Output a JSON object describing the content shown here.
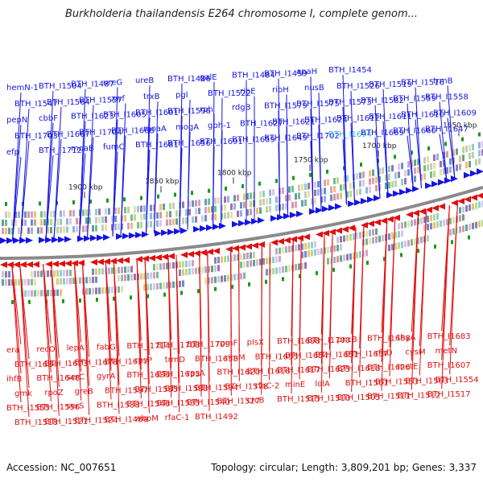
{
  "title": "Burkholderia thailandensis E264 chromosome I, complete genom...",
  "footer": {
    "accession_label": "Accession:",
    "accession": "NC_007651",
    "topology_label": "Topology:",
    "topology": "circular",
    "length_label": "Length:",
    "length": "3,809,201 bp",
    "genes_label": "Genes:",
    "genes": "3,337"
  },
  "colors": {
    "forward_strand": "#1414e6",
    "reverse_strand": "#e01010",
    "highlight_label": "#3cb4dc",
    "backbone": "#8a8a8a",
    "tick_marks": "#1a9a1a"
  },
  "scale": {
    "ticks": [
      "1650 kbp",
      "1700 kbp",
      "1750 kbp",
      "1800 kbp",
      "1850 kbp",
      "1900 kbp"
    ]
  },
  "genes_forward": [
    {
      "label": "efp"
    },
    {
      "label": "BTH_I1712"
    },
    {
      "label": "moaB"
    },
    {
      "label": "fumC"
    },
    {
      "label": "BTH_I1681"
    },
    {
      "label": "BTH_I1656"
    },
    {
      "label": "BTH_I1691"
    },
    {
      "label": "BTH_I1659"
    },
    {
      "label": "BTH_I1649"
    },
    {
      "label": "BTH_I1702"
    },
    {
      "label": "BTH_I1694",
      "highlight": true
    },
    {
      "label": "BTH_I1669"
    },
    {
      "label": "BTH_I1660"
    },
    {
      "label": "BTH_I1647"
    },
    {
      "label": "BTH_I1703"
    },
    {
      "label": "BTH_I1667"
    },
    {
      "label": "BTH_I1704"
    },
    {
      "label": "BTH_I1668"
    },
    {
      "label": "moaA"
    },
    {
      "label": "mogA"
    },
    {
      "label": "gph-1"
    },
    {
      "label": "BTH_I1627"
    },
    {
      "label": "BTH_I1621"
    },
    {
      "label": "BTH_I1624"
    },
    {
      "label": "BTH_I1612"
    },
    {
      "label": "BTH_I1611"
    },
    {
      "label": "BTH_I1610"
    },
    {
      "label": "BTH_I1609"
    },
    {
      "label": "pepN"
    },
    {
      "label": "cbbF"
    },
    {
      "label": "BTH_I1623"
    },
    {
      "label": "BTH_I1605"
    },
    {
      "label": "BTH_I1601"
    },
    {
      "label": "BTH_I1596"
    },
    {
      "label": "rph"
    },
    {
      "label": "rdgB"
    },
    {
      "label": "BTH_I1579"
    },
    {
      "label": "BTH_I1575"
    },
    {
      "label": "BTH_I1573"
    },
    {
      "label": "BTH_I1582"
    },
    {
      "label": "BTH_I1559"
    },
    {
      "label": "BTH_I1558"
    },
    {
      "label": "BTH_I1547"
    },
    {
      "label": "BTH_I1564"
    },
    {
      "label": "BTH_I1557"
    },
    {
      "label": "zwf"
    },
    {
      "label": "trxB"
    },
    {
      "label": "pgl"
    },
    {
      "label": "BTH_I1522"
    },
    {
      "label": "ribE"
    },
    {
      "label": "ribH"
    },
    {
      "label": "nusB"
    },
    {
      "label": "BTH_I1526"
    },
    {
      "label": "BTH_I1519"
    },
    {
      "label": "BTH_I1516"
    },
    {
      "label": "trmB"
    },
    {
      "label": "hemN-1"
    },
    {
      "label": "BTH_I1504"
    },
    {
      "label": "BTH_I1487"
    },
    {
      "label": "ureG"
    },
    {
      "label": "ureB"
    },
    {
      "label": "BTH_I1486"
    },
    {
      "label": "galE"
    },
    {
      "label": "BTH_I1484"
    },
    {
      "label": "BTH_I1459"
    },
    {
      "label": "apaH"
    },
    {
      "label": "BTH_I1454"
    }
  ],
  "genes_reverse": [
    {
      "label": "era"
    },
    {
      "label": "recO"
    },
    {
      "label": "lepA"
    },
    {
      "label": "fabG"
    },
    {
      "label": "BTH_I1714"
    },
    {
      "label": "BTH_I1708"
    },
    {
      "label": "BTH_I1709"
    },
    {
      "label": "rpmF"
    },
    {
      "label": "plsX"
    },
    {
      "label": "BTH_I1698"
    },
    {
      "label": "BTH_I1700"
    },
    {
      "label": "pncB"
    },
    {
      "label": "BTH_I1688"
    },
    {
      "label": "thyA"
    },
    {
      "label": "BTH_I1683"
    },
    {
      "label": "BTH_I1684"
    },
    {
      "label": "BTH_I1673"
    },
    {
      "label": "BTH_I1676"
    },
    {
      "label": "BTH_I1677"
    },
    {
      "label": "rpsP"
    },
    {
      "label": "trmD"
    },
    {
      "label": "BTH_I1658"
    },
    {
      "label": "rimM"
    },
    {
      "label": "BTH_I1655"
    },
    {
      "label": "BTH_I1654"
    },
    {
      "label": "BTH_I1651"
    },
    {
      "label": "BTH_I1657"
    },
    {
      "label": "rfaD"
    },
    {
      "label": "cysM"
    },
    {
      "label": "metN"
    },
    {
      "label": "ihfB"
    },
    {
      "label": "BTH_I1648"
    },
    {
      "label": "serC"
    },
    {
      "label": "gyrA"
    },
    {
      "label": "BTH_I1636"
    },
    {
      "label": "BTH_I1633"
    },
    {
      "label": "rpsA"
    },
    {
      "label": "BTH_I1620"
    },
    {
      "label": "BTH_I1616"
    },
    {
      "label": "BTH_I1617"
    },
    {
      "label": "BTH_I1625"
    },
    {
      "label": "BTH_I1618"
    },
    {
      "label": "BTH_I1626"
    },
    {
      "label": "metE"
    },
    {
      "label": "BTH_I1607"
    },
    {
      "label": "gmk"
    },
    {
      "label": "rpoZ"
    },
    {
      "label": "greB"
    },
    {
      "label": "BTH_I1597"
    },
    {
      "label": "BTH_I1585"
    },
    {
      "label": "BTH_I1588"
    },
    {
      "label": "BTH_I1594"
    },
    {
      "label": "BTH_I1578"
    },
    {
      "label": "rfaC-2"
    },
    {
      "label": "minE"
    },
    {
      "label": "lolA"
    },
    {
      "label": "BTH_I1561"
    },
    {
      "label": "BTH_I1553"
    },
    {
      "label": "BTH_I1563"
    },
    {
      "label": "BTH_I1554"
    },
    {
      "label": "BTH_I1555"
    },
    {
      "label": "BTH_I1556"
    },
    {
      "label": "serS"
    },
    {
      "label": "BTH_I1538"
    },
    {
      "label": "BTH_I1546"
    },
    {
      "label": "BTH_I1535"
    },
    {
      "label": "BTH_I1540"
    },
    {
      "label": "BTH_I1527"
    },
    {
      "label": "crcB"
    },
    {
      "label": "BTH_I1515"
    },
    {
      "label": "BTH_I1510"
    },
    {
      "label": "BTH_I1505"
    },
    {
      "label": "BTH_I1511"
    },
    {
      "label": "BTH_I1512"
    },
    {
      "label": "BTH_I1517"
    },
    {
      "label": "BTH_I1518"
    },
    {
      "label": "BTH_I1521"
    },
    {
      "label": "BTH_I1524"
    },
    {
      "label": "BTH_I1489"
    },
    {
      "label": "wbpM"
    },
    {
      "label": "rfaC-1"
    },
    {
      "label": "BTH_I1492"
    }
  ]
}
